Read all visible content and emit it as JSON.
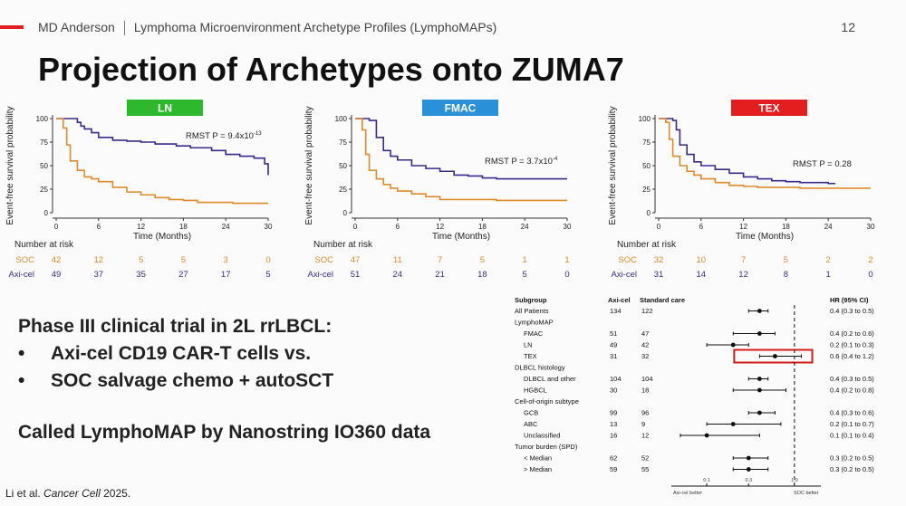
{
  "header": {
    "org": "MD Anderson",
    "subtitle": "Lymphoma Microenvironment Archetype Profiles (LymphoMAPs)",
    "page_number": "12"
  },
  "title": "Projection of Archetypes onto ZUMA7",
  "colors": {
    "axicel": "#3b2a8c",
    "soc": "#e08a2a",
    "ln": "#2db82d",
    "fmac": "#2a90d8",
    "tex": "#e41e1e",
    "brand_red": "#e02020"
  },
  "km_common": {
    "ylabel": "Event-free survival probability",
    "xlabel": "Time (Months)",
    "yticks": [
      "100",
      "75",
      "50",
      "25",
      "0"
    ],
    "xticks": [
      "0",
      "6",
      "12",
      "18",
      "24",
      "30"
    ],
    "risk_title": "Number at risk",
    "soc_label": "SOC",
    "axicel_label": "Axi-cel"
  },
  "km_panels": [
    {
      "tag": "LN",
      "rmst": "RMST P = 9.4x10",
      "rmst_exp": "-13",
      "soc_risk": [
        "42",
        "12",
        "5",
        "5",
        "3",
        "0"
      ],
      "axicel_risk": [
        "49",
        "37",
        "35",
        "27",
        "17",
        "5"
      ]
    },
    {
      "tag": "FMAC",
      "rmst": "RMST P = 3.7x10",
      "rmst_exp": "-4",
      "soc_risk": [
        "47",
        "11",
        "7",
        "5",
        "1",
        "1"
      ],
      "axicel_risk": [
        "51",
        "24",
        "21",
        "18",
        "5",
        "0"
      ]
    },
    {
      "tag": "TEX",
      "rmst": "RMST P = 0.28",
      "rmst_exp": "",
      "soc_risk": [
        "32",
        "10",
        "7",
        "5",
        "2",
        "2"
      ],
      "axicel_risk": [
        "31",
        "14",
        "12",
        "8",
        "1",
        "0"
      ]
    }
  ],
  "chart_data": {
    "type": "line",
    "charts": [
      {
        "panel": "LN",
        "x_unit": "months",
        "y_unit": "percent",
        "xlim": [
          0,
          30
        ],
        "ylim": [
          0,
          100
        ],
        "series": [
          {
            "name": "Axi-cel",
            "x": [
              0,
              2,
              3,
              3.5,
              4,
              5,
              6,
              8,
              10,
              12,
              14,
              17,
              19,
              22,
              24,
              26,
              28,
              29.5,
              30
            ],
            "y": [
              100,
              100,
              96,
              92,
              89,
              85,
              80,
              77,
              76,
              75,
              73,
              71,
              69,
              66,
              62,
              60,
              58,
              52,
              40
            ]
          },
          {
            "name": "SOC",
            "x": [
              0,
              1,
              1.5,
              2,
              3,
              4,
              5,
              6,
              8,
              10,
              12,
              14,
              16,
              18,
              20,
              25,
              30
            ],
            "y": [
              100,
              90,
              72,
              55,
              45,
              38,
              36,
              33,
              27,
              22,
              19,
              16,
              14,
              13,
              11,
              10,
              10
            ]
          }
        ]
      },
      {
        "panel": "FMAC",
        "x_unit": "months",
        "y_unit": "percent",
        "xlim": [
          0,
          30
        ],
        "ylim": [
          0,
          100
        ],
        "series": [
          {
            "name": "Axi-cel",
            "x": [
              0,
              2,
              3,
              4,
              5,
              6,
              8,
              10,
              12,
              14,
              16,
              18,
              20,
              30
            ],
            "y": [
              100,
              98,
              80,
              66,
              60,
              56,
              50,
              47,
              44,
              40,
              39,
              37,
              36,
              36
            ]
          },
          {
            "name": "SOC",
            "x": [
              0,
              1,
              1.5,
              2,
              3,
              4,
              5,
              6,
              8,
              10,
              12,
              20,
              30
            ],
            "y": [
              100,
              88,
              62,
              45,
              36,
              30,
              26,
              23,
              20,
              17,
              14,
              13,
              13
            ]
          }
        ]
      },
      {
        "panel": "TEX",
        "x_unit": "months",
        "y_unit": "percent",
        "xlim": [
          0,
          30
        ],
        "ylim": [
          0,
          100
        ],
        "series": [
          {
            "name": "Axi-cel",
            "x": [
              0,
              2,
              2.5,
              3,
              4,
              5,
              6,
              8,
              10,
              12,
              14,
              16,
              18,
              20,
              24,
              25
            ],
            "y": [
              100,
              98,
              88,
              72,
              62,
              54,
              50,
              46,
              42,
              38,
              36,
              34,
              33,
              32,
              31,
              31
            ]
          },
          {
            "name": "SOC",
            "x": [
              0,
              1,
              1.5,
              2,
              3,
              4,
              5,
              6,
              8,
              10,
              12,
              14,
              20,
              30
            ],
            "y": [
              100,
              96,
              78,
              60,
              50,
              44,
              40,
              36,
              32,
              29,
              28,
              27,
              26,
              26
            ]
          }
        ]
      },
      {
        "panel": "forest",
        "type": "forest",
        "x_scale": "log",
        "columns": [
          "Subgroup",
          "Axi-cel",
          "Standard care",
          "HR (95% CI)"
        ],
        "xticks": [
          "0.1",
          "0.3",
          "1.0"
        ],
        "left_label": "Axi-cel better",
        "right_label": "SOC better",
        "rows": [
          {
            "label": "All Patients",
            "level": 0,
            "axicel": "134",
            "soc": "122",
            "hr_text": "0.4 (0.3 to 0.5)",
            "hr": 0.4,
            "lo": 0.3,
            "hi": 0.5
          },
          {
            "label": "LymphoMAP",
            "level": 0,
            "header": true
          },
          {
            "label": "FMAC",
            "level": 1,
            "axicel": "51",
            "soc": "47",
            "hr_text": "0.4 (0.2 to 0.6)",
            "hr": 0.4,
            "lo": 0.2,
            "hi": 0.6
          },
          {
            "label": "LN",
            "level": 1,
            "axicel": "49",
            "soc": "42",
            "hr_text": "0.2 (0.1 to 0.3)",
            "hr": 0.2,
            "lo": 0.1,
            "hi": 0.3
          },
          {
            "label": "TEX",
            "level": 1,
            "axicel": "31",
            "soc": "32",
            "hr_text": "0.6 (0.4 to 1.2)",
            "hr": 0.6,
            "lo": 0.4,
            "hi": 1.2,
            "highlight": true
          },
          {
            "label": "DLBCL histology",
            "level": 0,
            "header": true
          },
          {
            "label": "DLBCL and other",
            "level": 1,
            "axicel": "104",
            "soc": "104",
            "hr_text": "0.4 (0.3 to 0.5)",
            "hr": 0.4,
            "lo": 0.3,
            "hi": 0.5
          },
          {
            "label": "HGBCL",
            "level": 1,
            "axicel": "30",
            "soc": "18",
            "hr_text": "0.4 (0.2 to 0.8)",
            "hr": 0.4,
            "lo": 0.2,
            "hi": 0.8
          },
          {
            "label": "Cell-of-origin subtype",
            "level": 0,
            "header": true
          },
          {
            "label": "GCB",
            "level": 1,
            "axicel": "99",
            "soc": "96",
            "hr_text": "0.4 (0.3 to 0.6)",
            "hr": 0.4,
            "lo": 0.3,
            "hi": 0.6
          },
          {
            "label": "ABC",
            "level": 1,
            "axicel": "13",
            "soc": "9",
            "hr_text": "0.2 (0.1 to 0.7)",
            "hr": 0.2,
            "lo": 0.1,
            "hi": 0.7
          },
          {
            "label": "Unclassified",
            "level": 1,
            "axicel": "16",
            "soc": "12",
            "hr_text": "0.1 (0.1 to 0.4)",
            "hr": 0.1,
            "lo": 0.05,
            "hi": 0.4
          },
          {
            "label": "Tumor burden (SPD)",
            "level": 0,
            "header": true
          },
          {
            "label": "< Median",
            "level": 1,
            "axicel": "62",
            "soc": "52",
            "hr_text": "0.3 (0.2 to 0.5)",
            "hr": 0.3,
            "lo": 0.2,
            "hi": 0.5
          },
          {
            "label": "> Median",
            "level": 1,
            "axicel": "59",
            "soc": "55",
            "hr_text": "0.3 (0.2 to 0.5)",
            "hr": 0.3,
            "lo": 0.2,
            "hi": 0.5
          }
        ]
      }
    ]
  },
  "bullets": {
    "heading": "Phase III clinical trial in 2L rrLBCL:",
    "items": [
      "Axi-cel CD19 CAR-T cells vs.",
      "SOC salvage chemo + autoSCT"
    ],
    "bullet_char": "•"
  },
  "called": "Called LymphoMAP by Nanostring IO360 data",
  "citation": {
    "authors": "Li et al.",
    "journal": "Cancer Cell",
    "year": "2025."
  }
}
